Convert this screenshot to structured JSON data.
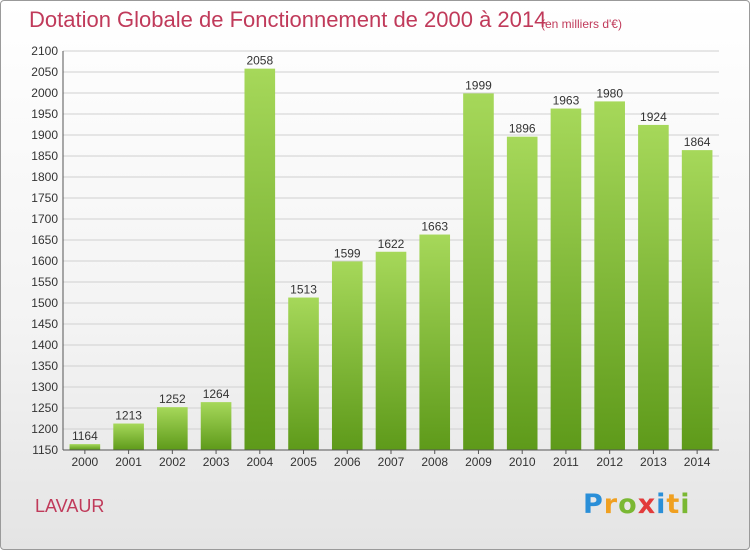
{
  "chart_data": {
    "type": "bar",
    "title": "Dotation Globale de Fonctionnement de 2000 à 2014",
    "subtitle": "(en milliers d'€)",
    "categories": [
      "2000",
      "2001",
      "2002",
      "2003",
      "2004",
      "2005",
      "2006",
      "2007",
      "2008",
      "2009",
      "2010",
      "2011",
      "2012",
      "2013",
      "2014"
    ],
    "values": [
      1164,
      1213,
      1252,
      1264,
      2058,
      1513,
      1599,
      1622,
      1663,
      1999,
      1896,
      1963,
      1980,
      1924,
      1864
    ],
    "ylim": [
      1150,
      2100
    ],
    "yticks": [
      1150,
      1200,
      1250,
      1300,
      1350,
      1400,
      1450,
      1500,
      1550,
      1600,
      1650,
      1700,
      1750,
      1800,
      1850,
      1900,
      1950,
      2000,
      2050,
      2100
    ],
    "grid": true,
    "bar_color": "#8cc63f",
    "bar_color_dark": "#5e9a1a"
  },
  "commune": "LAVAUR",
  "logo": {
    "text": "Proxiti",
    "letters": [
      "P",
      "r",
      "o",
      "x",
      "i",
      "t",
      "i"
    ],
    "colors": [
      "#2a8fd8",
      "#f0a020",
      "#7ab833",
      "#e23b3b",
      "#2a8fd8",
      "#f0a020",
      "#7ab833"
    ]
  },
  "colors": {
    "title": "#c03a5a",
    "grid": "#d0d0d0",
    "axis": "#555555"
  }
}
